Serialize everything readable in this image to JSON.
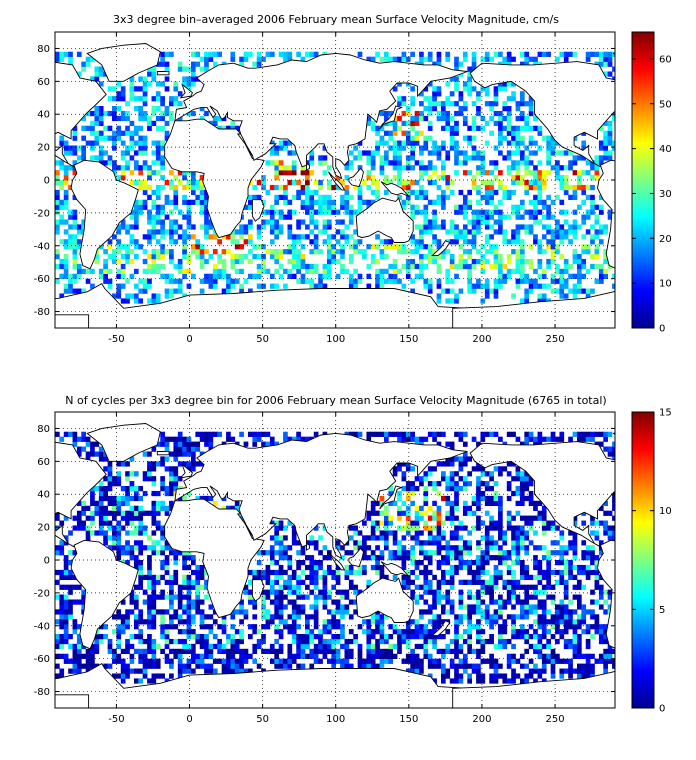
{
  "chart_data": [
    {
      "type": "heatmap",
      "title": "3x3 degree bin–averaged 2006 February mean Surface Velocity Magnitude, cm/s",
      "xlabel": "",
      "ylabel": "",
      "xlim": [
        -92,
        291
      ],
      "ylim": [
        -90,
        90
      ],
      "x_ticks": [
        "-50",
        "0",
        "50",
        "100",
        "150",
        "200",
        "250"
      ],
      "y_ticks": [
        "80",
        "60",
        "40",
        "20",
        "0",
        "-20",
        "-40",
        "-60",
        "-80"
      ],
      "grid": true,
      "colorbar_range": [
        0,
        66
      ],
      "colorbar_ticks": [
        "60",
        "50",
        "40",
        "30",
        "20",
        "10",
        "0"
      ],
      "colormap": "jet",
      "cell_size_deg": 3,
      "data_pattern": "velocity"
    },
    {
      "type": "heatmap",
      "title": "N of cycles per 3x3 degree bin for 2006 February mean Surface Velocity Magnitude (6765 in total)",
      "xlabel": "",
      "ylabel": "",
      "xlim": [
        -92,
        291
      ],
      "ylim": [
        -90,
        90
      ],
      "x_ticks": [
        "-50",
        "0",
        "50",
        "100",
        "150",
        "200",
        "250"
      ],
      "y_ticks": [
        "80",
        "60",
        "40",
        "20",
        "0",
        "-20",
        "-40",
        "-60",
        "-80"
      ],
      "grid": true,
      "colorbar_range": [
        0,
        15
      ],
      "colorbar_ticks": [
        "15",
        "10",
        "5",
        "0"
      ],
      "colormap": "jet",
      "cell_size_deg": 3,
      "data_pattern": "counts"
    }
  ],
  "colors": {
    "background": "#ffffff",
    "axis": "#000000",
    "grid": "#000000",
    "coastline": "#000000"
  }
}
